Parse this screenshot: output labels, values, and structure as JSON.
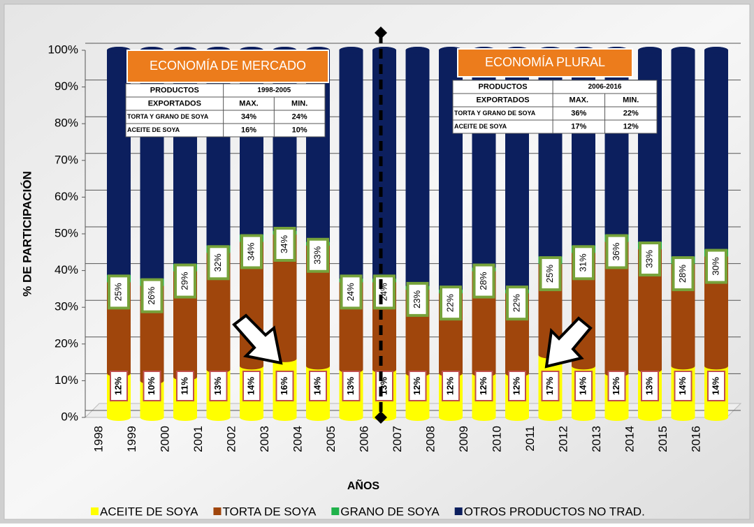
{
  "chart_data": {
    "type": "stacked_bar",
    "y_label": "% DE PARTICIPACIÓN",
    "x_label": "AÑOS",
    "categories": [
      "1998",
      "1999",
      "2000",
      "2001",
      "2002",
      "2003",
      "2004",
      "2005",
      "2006",
      "2007",
      "2008",
      "2009",
      "2010",
      "2011",
      "2012",
      "2013",
      "2014",
      "2015",
      "2016"
    ],
    "series": [
      {
        "name": "ACEITE DE SOYA",
        "color": "#ffff00",
        "values": [
          12,
          10,
          11,
          13,
          14,
          16,
          14,
          13,
          13,
          12,
          12,
          12,
          12,
          17,
          14,
          12,
          13,
          14,
          14
        ],
        "value_labels": [
          "12%",
          "10%",
          "11%",
          "13%",
          "14%",
          "16%",
          "14%",
          "13%",
          "13%",
          "12%",
          "12%",
          "12%",
          "12%",
          "17%",
          "14%",
          "12%",
          "13%",
          "14%",
          "14%"
        ]
      },
      {
        "name": "TORTA DE SOYA",
        "color": "#a0460c",
        "values": [
          25,
          26,
          29,
          32,
          34,
          34,
          33,
          24,
          24,
          23,
          22,
          28,
          22,
          25,
          31,
          36,
          33,
          28,
          30
        ],
        "value_labels": [
          "25%",
          "26%",
          "29%",
          "32%",
          "34%",
          "34%",
          "33%",
          "24%",
          "24%",
          "23%",
          "22%",
          "28%",
          "22%",
          "25%",
          "31%",
          "36%",
          "33%",
          "28%",
          "30%"
        ]
      },
      {
        "name": "GRANO DE SOYA",
        "color": "#1fb24a",
        "values": [
          2,
          2,
          2,
          2,
          2,
          1,
          1,
          1,
          1,
          1,
          1,
          1,
          1,
          2,
          2,
          2,
          2,
          2,
          2
        ]
      },
      {
        "name": "OTROS PRODUCTOS NO TRAD.",
        "color": "#0c1f5e",
        "values": [
          61,
          62,
          58,
          53,
          50,
          49,
          52,
          62,
          62,
          64,
          65,
          59,
          65,
          56,
          53,
          50,
          52,
          56,
          54
        ]
      }
    ],
    "ylim": [
      0,
      100
    ],
    "yticks": [
      {
        "value": 0,
        "label": "0%"
      },
      {
        "value": 10,
        "label": "10%"
      },
      {
        "value": 20,
        "label": "20%"
      },
      {
        "value": 30,
        "label": "30%"
      },
      {
        "value": 40,
        "label": "40%"
      },
      {
        "value": 50,
        "label": "50%"
      },
      {
        "value": 60,
        "label": "60%"
      },
      {
        "value": 70,
        "label": "70%"
      },
      {
        "value": 80,
        "label": "80%"
      },
      {
        "value": 90,
        "label": "90%"
      },
      {
        "value": 100,
        "label": "100%"
      }
    ],
    "grid": true,
    "legend": "bottom",
    "panels": [
      {
        "title": "ECONOMÍA DE MERCADO",
        "header": [
          "PRODUCTOS",
          "1998-2005"
        ],
        "subheader": [
          "EXPORTADOS",
          "MAX.",
          "MIN."
        ],
        "rows": [
          [
            "TORTA Y GRANO DE SOYA",
            "34%",
            "24%"
          ],
          [
            "ACEITE DE SOYA",
            "16%",
            "10%"
          ]
        ]
      },
      {
        "title": "ECONOMÍA PLURAL",
        "header": [
          "PRODUCTOS",
          "2006-2016"
        ],
        "subheader": [
          "EXPORTADOS",
          "MAX.",
          "MIN."
        ],
        "rows": [
          [
            "TORTA Y GRANO DE SOYA",
            "36%",
            "22%"
          ],
          [
            "ACEITE DE SOYA",
            "17%",
            "12%"
          ]
        ]
      }
    ]
  }
}
